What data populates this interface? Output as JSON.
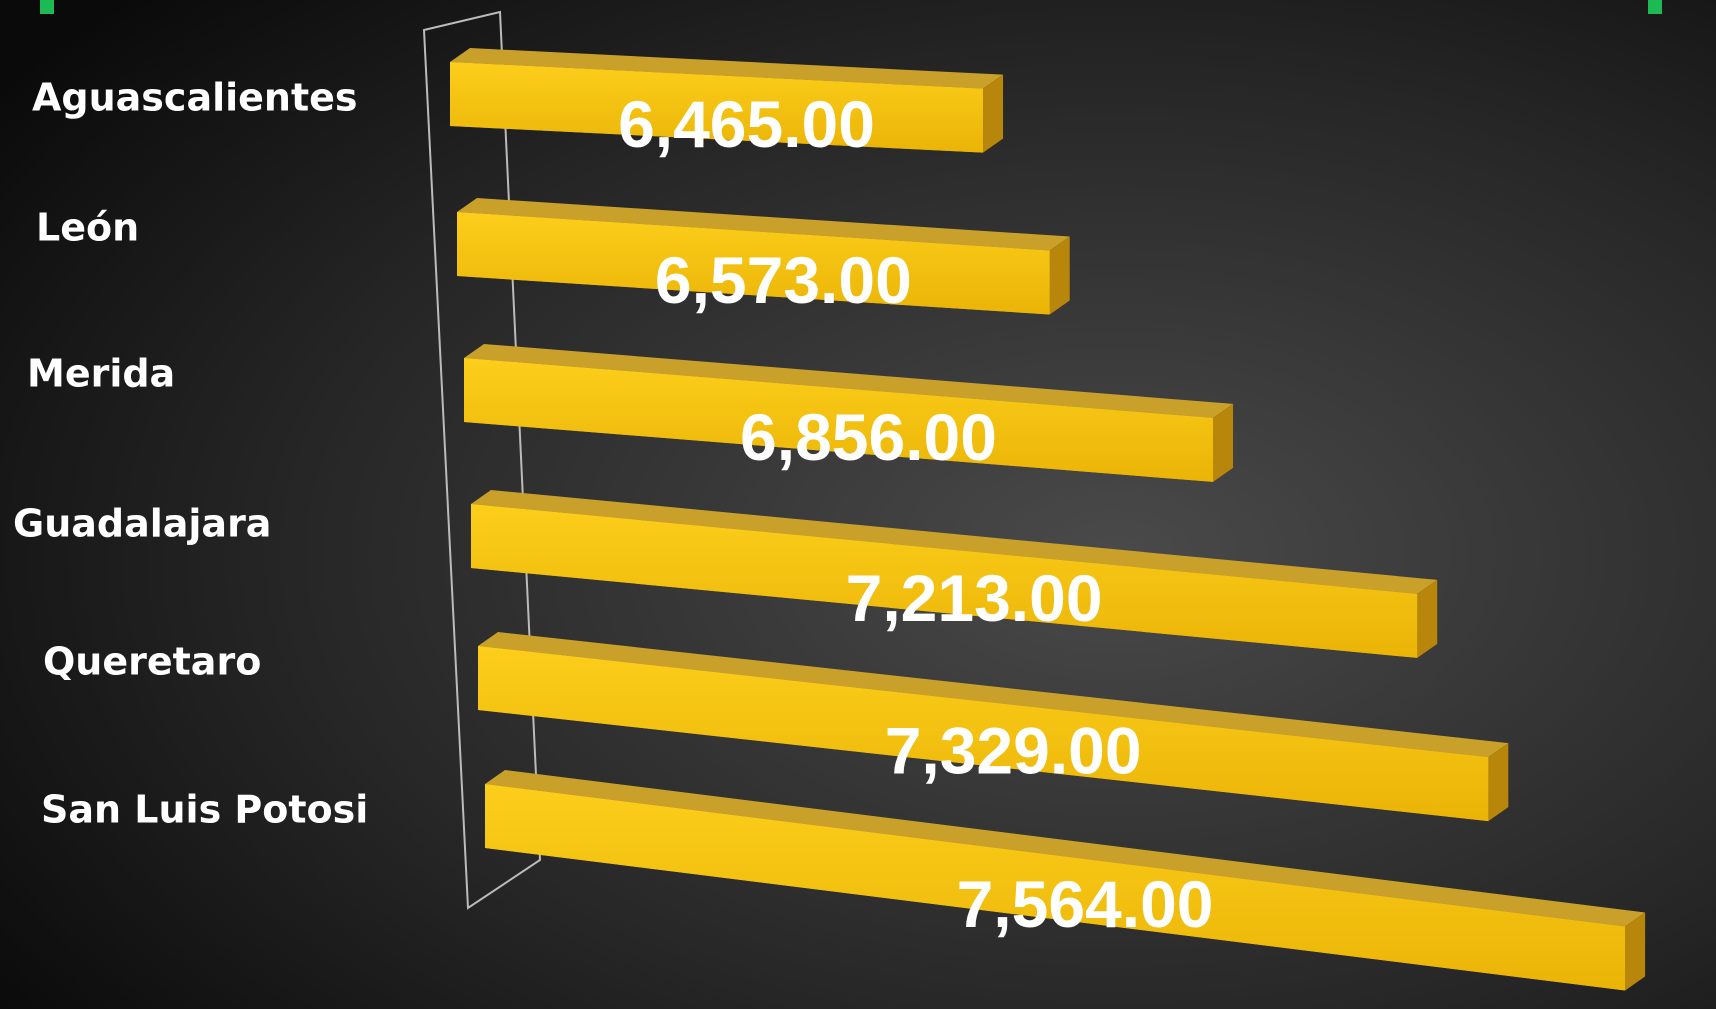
{
  "chart_data": {
    "type": "bar3d",
    "categories": [
      "Aguascalientes",
      "León",
      "Merida",
      "Guadalajara",
      "Queretaro",
      "San Luis Potosi"
    ],
    "values": [
      6465,
      6573,
      6856,
      7213,
      7329,
      7564
    ],
    "value_labels": [
      "6,465.00",
      "6,573.00",
      "6,856.00",
      "7,213.00",
      "7,329.00",
      "7,564.00"
    ],
    "color": "#f5c518",
    "xlim": [
      5500,
      7600
    ]
  }
}
